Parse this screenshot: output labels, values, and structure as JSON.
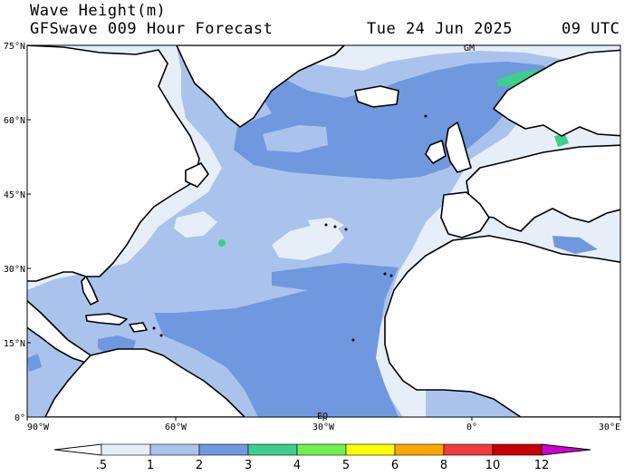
{
  "title": {
    "line1": "Wave Height(m)",
    "line2_left": "GFSwave 009 Hour Forecast",
    "date": "Tue 24 Jun 2025",
    "time": "09 UTC"
  },
  "map": {
    "lat_labels": [
      "75°N",
      "60°N",
      "45°N",
      "30°N",
      "15°N",
      "0°"
    ],
    "lon_labels": [
      "90°W",
      "60°W",
      "30°W",
      "0°",
      "30°E"
    ],
    "marker_gm": "GM",
    "marker_eq": "EQ",
    "ocean_base_color": "#e6eef8",
    "land_color": "#ffffff",
    "coast_color": "#000000"
  },
  "colorbar": {
    "labels": [
      ".5",
      "1",
      "2",
      "3",
      "4",
      "5",
      "6",
      "8",
      "10",
      "12"
    ],
    "colors": [
      "#ffffff",
      "#e6eef8",
      "#a9c3ec",
      "#6f98de",
      "#3ccf8e",
      "#72f050",
      "#ffff00",
      "#ffa500",
      "#f03c3c",
      "#c80000",
      "#d000d0"
    ]
  }
}
